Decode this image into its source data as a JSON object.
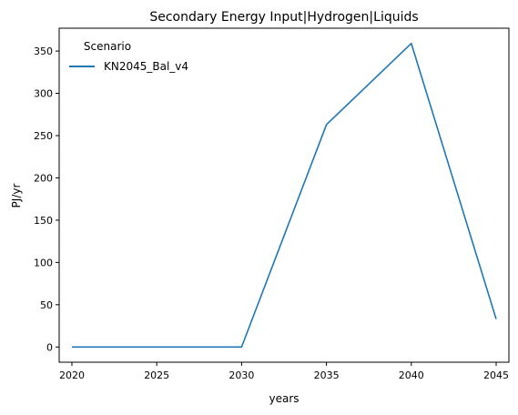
{
  "chart_data": {
    "type": "line",
    "title": "Secondary Energy Input|Hydrogen|Liquids",
    "xlabel": "years",
    "ylabel": "PJ/yr",
    "x": [
      2020,
      2025,
      2030,
      2035,
      2040,
      2045
    ],
    "xlim": [
      2019.25,
      2045.75
    ],
    "ylim": [
      -18,
      377
    ],
    "xticks": [
      2020,
      2025,
      2030,
      2035,
      2040,
      2045
    ],
    "yticks": [
      0,
      50,
      100,
      150,
      200,
      250,
      300,
      350
    ],
    "grid": false,
    "legend": {
      "title": "Scenario",
      "placement": "top-left"
    },
    "series": [
      {
        "name": "KN2045_Bal_v4",
        "color": "#1f77b4",
        "values": [
          0,
          0,
          0,
          263,
          359,
          33
        ]
      }
    ]
  }
}
